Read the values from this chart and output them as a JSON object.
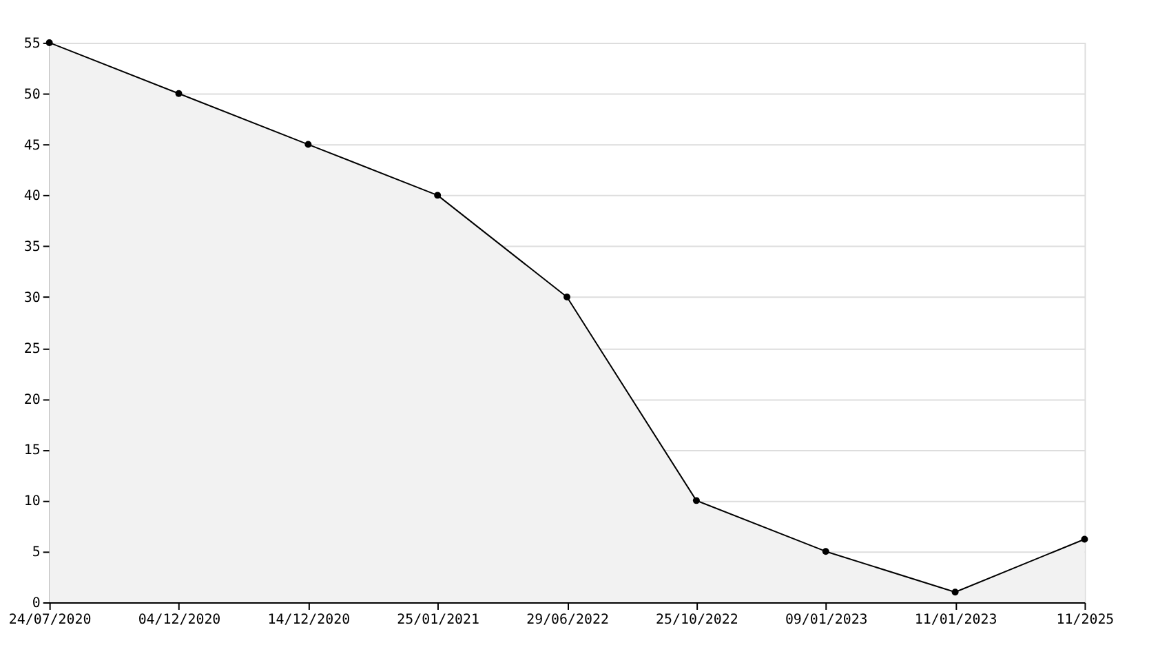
{
  "chart_data": {
    "type": "area",
    "categories": [
      "24/07/2020",
      "04/12/2020",
      "14/12/2020",
      "25/01/2021",
      "29/06/2022",
      "25/10/2022",
      "09/01/2023",
      "11/01/2023",
      "11/2025"
    ],
    "series": [
      {
        "color": "#000000",
        "values": [
          55,
          50,
          45,
          40,
          30,
          10,
          5,
          1,
          6.2
        ]
      }
    ],
    "ylim": [
      0,
      55
    ],
    "yticks": [
      0,
      5,
      10,
      15,
      20,
      25,
      30,
      35,
      40,
      45,
      50,
      55
    ],
    "grid": "y",
    "marker": "circle",
    "line_style": "solid"
  }
}
